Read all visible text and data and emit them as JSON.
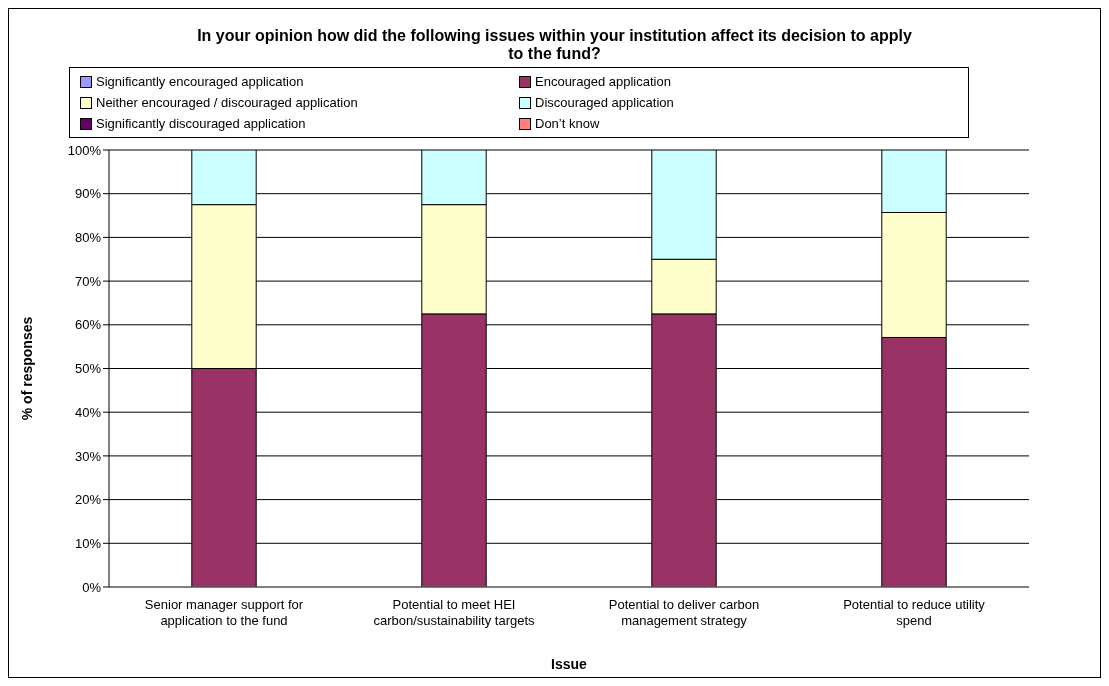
{
  "chart_data": {
    "type": "bar",
    "stacked": true,
    "title": "In your opinion how did the following issues within your institution affect its decision to apply to the fund?",
    "xlabel": "Issue",
    "ylabel": "% of responses",
    "categories": [
      "Senior manager support for application to the fund",
      "Potential to meet HEI carbon/sustainability targets",
      "Potential to deliver carbon management strategy",
      "Potential to reduce utility spend"
    ],
    "series": [
      {
        "name": "Significantly encouraged application",
        "color": "#9999ff",
        "values": [
          0,
          0,
          0,
          0
        ]
      },
      {
        "name": "Encouraged application",
        "color": "#993366",
        "values": [
          50,
          62.5,
          62.5,
          57.1
        ]
      },
      {
        "name": "Neither encouraged / discouraged application",
        "color": "#ffffcc",
        "values": [
          37.5,
          25,
          12.5,
          28.6
        ]
      },
      {
        "name": "Discouraged application",
        "color": "#ccffff",
        "values": [
          12.5,
          12.5,
          25,
          14.3
        ]
      },
      {
        "name": "Significantly discouraged application",
        "color": "#660066",
        "values": [
          0,
          0,
          0,
          0
        ]
      },
      {
        "name": "Don’t know",
        "color": "#ff8080",
        "values": [
          0,
          0,
          0,
          0
        ]
      }
    ],
    "ylim": [
      0,
      100
    ],
    "yticks": [
      {
        "value": 0,
        "label": "0%"
      },
      {
        "value": 10,
        "label": "10%"
      },
      {
        "value": 20,
        "label": "20%"
      },
      {
        "value": 30,
        "label": "30%"
      },
      {
        "value": 40,
        "label": "40%"
      },
      {
        "value": 50,
        "label": "50%"
      },
      {
        "value": 60,
        "label": "60%"
      },
      {
        "value": 70,
        "label": "70%"
      },
      {
        "value": 80,
        "label": "80%"
      },
      {
        "value": 90,
        "label": "90%"
      },
      {
        "value": 100,
        "label": "100%"
      }
    ],
    "grid": "y",
    "legend": "top"
  }
}
